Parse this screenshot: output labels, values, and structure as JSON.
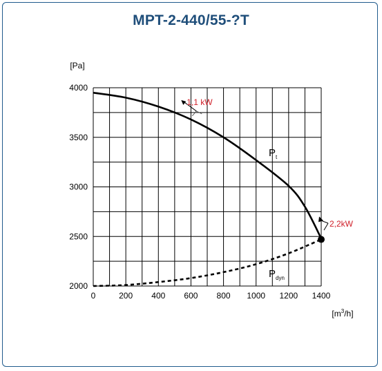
{
  "title": "MPT-2-440/55-?T",
  "chart_data": {
    "type": "line",
    "ylabel": "[Pa]",
    "xlabel_base": "[m",
    "xlabel_sup": "3",
    "xlabel_end": "/h]",
    "xlim": [
      0,
      1400
    ],
    "ylim": [
      2000,
      4000
    ],
    "x_ticks": [
      0,
      200,
      400,
      600,
      800,
      1000,
      1200,
      1400
    ],
    "y_ticks": [
      2000,
      2500,
      3000,
      3500,
      4000
    ],
    "grid": true,
    "series": [
      {
        "name": "Pt",
        "label_main": "P",
        "label_sub": "t",
        "style": "solid",
        "x": [
          0,
          200,
          400,
          600,
          800,
          1000,
          1200,
          1300,
          1400
        ],
        "y": [
          3950,
          3900,
          3810,
          3680,
          3500,
          3270,
          3010,
          2800,
          2480
        ]
      },
      {
        "name": "Pdyn",
        "label_main": "P",
        "label_sub": "dyn",
        "style": "dashed",
        "x": [
          0,
          200,
          400,
          600,
          800,
          1000,
          1200,
          1400
        ],
        "y": [
          2000,
          2010,
          2040,
          2080,
          2140,
          2220,
          2330,
          2470
        ]
      }
    ],
    "annotations": [
      {
        "text": "1,1 kW",
        "color": "#d0202a",
        "x": 550,
        "y": 3745,
        "at_x": 540,
        "at_y": 3820
      },
      {
        "text": "2,2kW",
        "color": "#d0202a",
        "x": 1400,
        "y": 2480,
        "at_x": 1400,
        "at_y": 2680
      }
    ],
    "operating_point": {
      "x": 1400,
      "y": 2470
    }
  }
}
